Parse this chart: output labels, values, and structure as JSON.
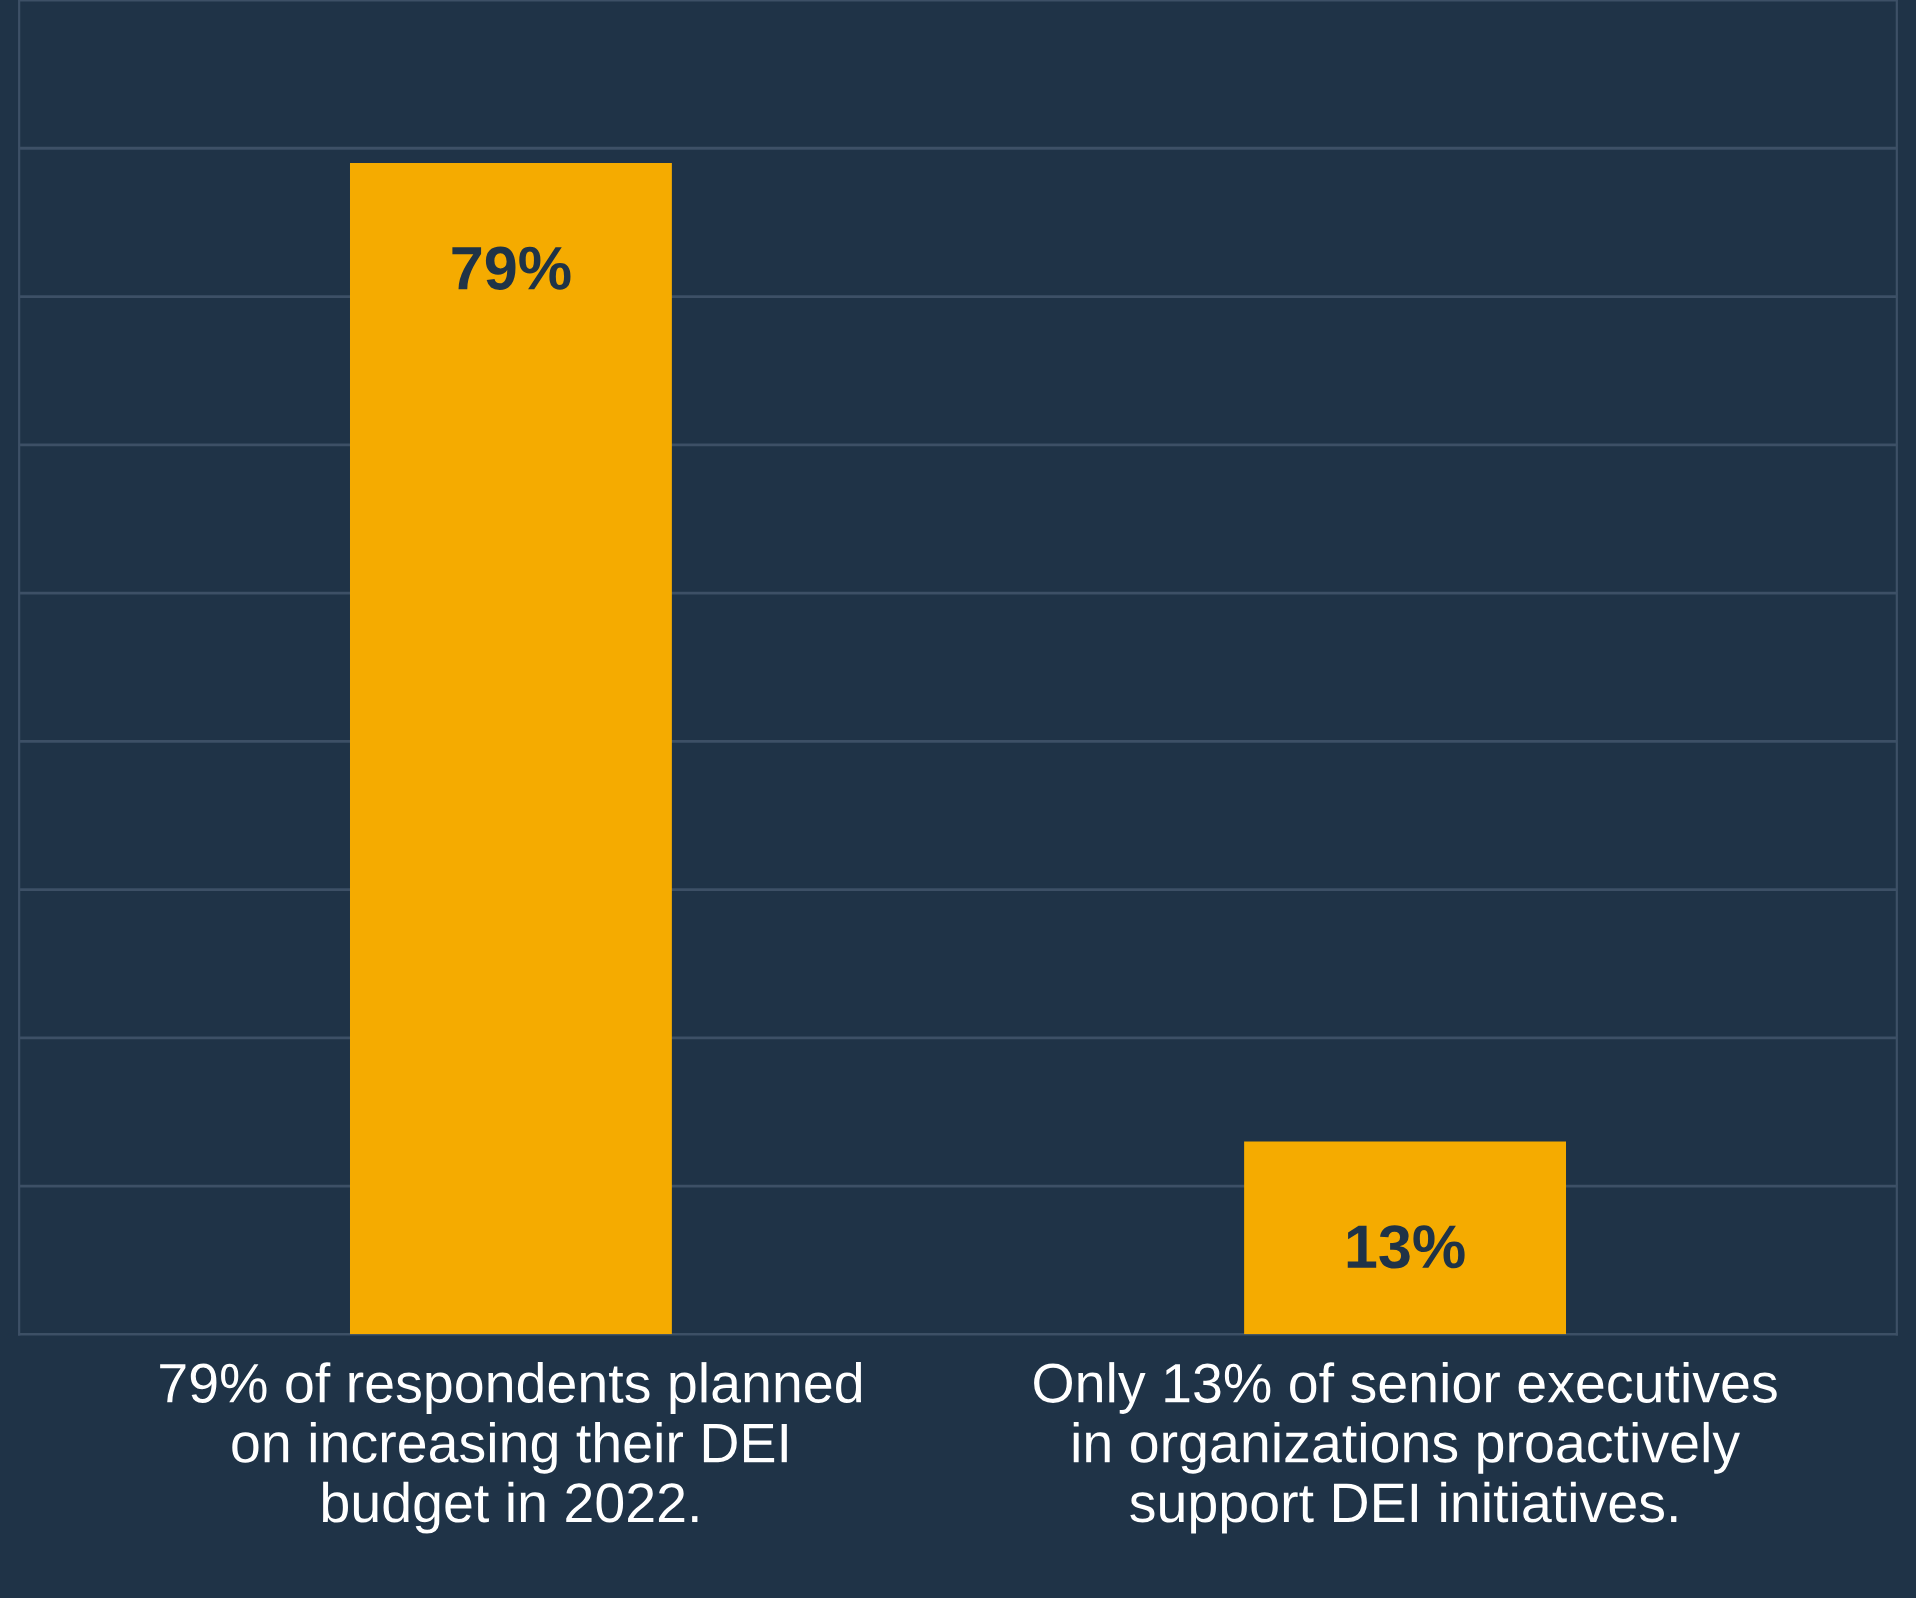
{
  "chart_data": {
    "type": "bar",
    "categories": [
      "79% of respondents planned\non increasing their DEI\nbudget in 2022.",
      "Only 13% of senior executives\nin organizations proactively\nsupport DEI initiatives."
    ],
    "values": [
      79,
      13
    ],
    "color": "#f5ab00",
    "value_labels": [
      "79%",
      "13%"
    ],
    "ylim": [
      0,
      90
    ],
    "yticks": [
      {
        "value": 0,
        "label": null
      },
      {
        "value": 10,
        "label": null
      },
      {
        "value": 20,
        "label": null
      },
      {
        "value": 30,
        "label": null
      },
      {
        "value": 40,
        "label": null
      },
      {
        "value": 50,
        "label": null
      },
      {
        "value": 60,
        "label": null
      },
      {
        "value": 70,
        "label": null
      },
      {
        "value": 80,
        "label": null
      },
      {
        "value": 90,
        "label": null
      }
    ],
    "grid": "y"
  }
}
